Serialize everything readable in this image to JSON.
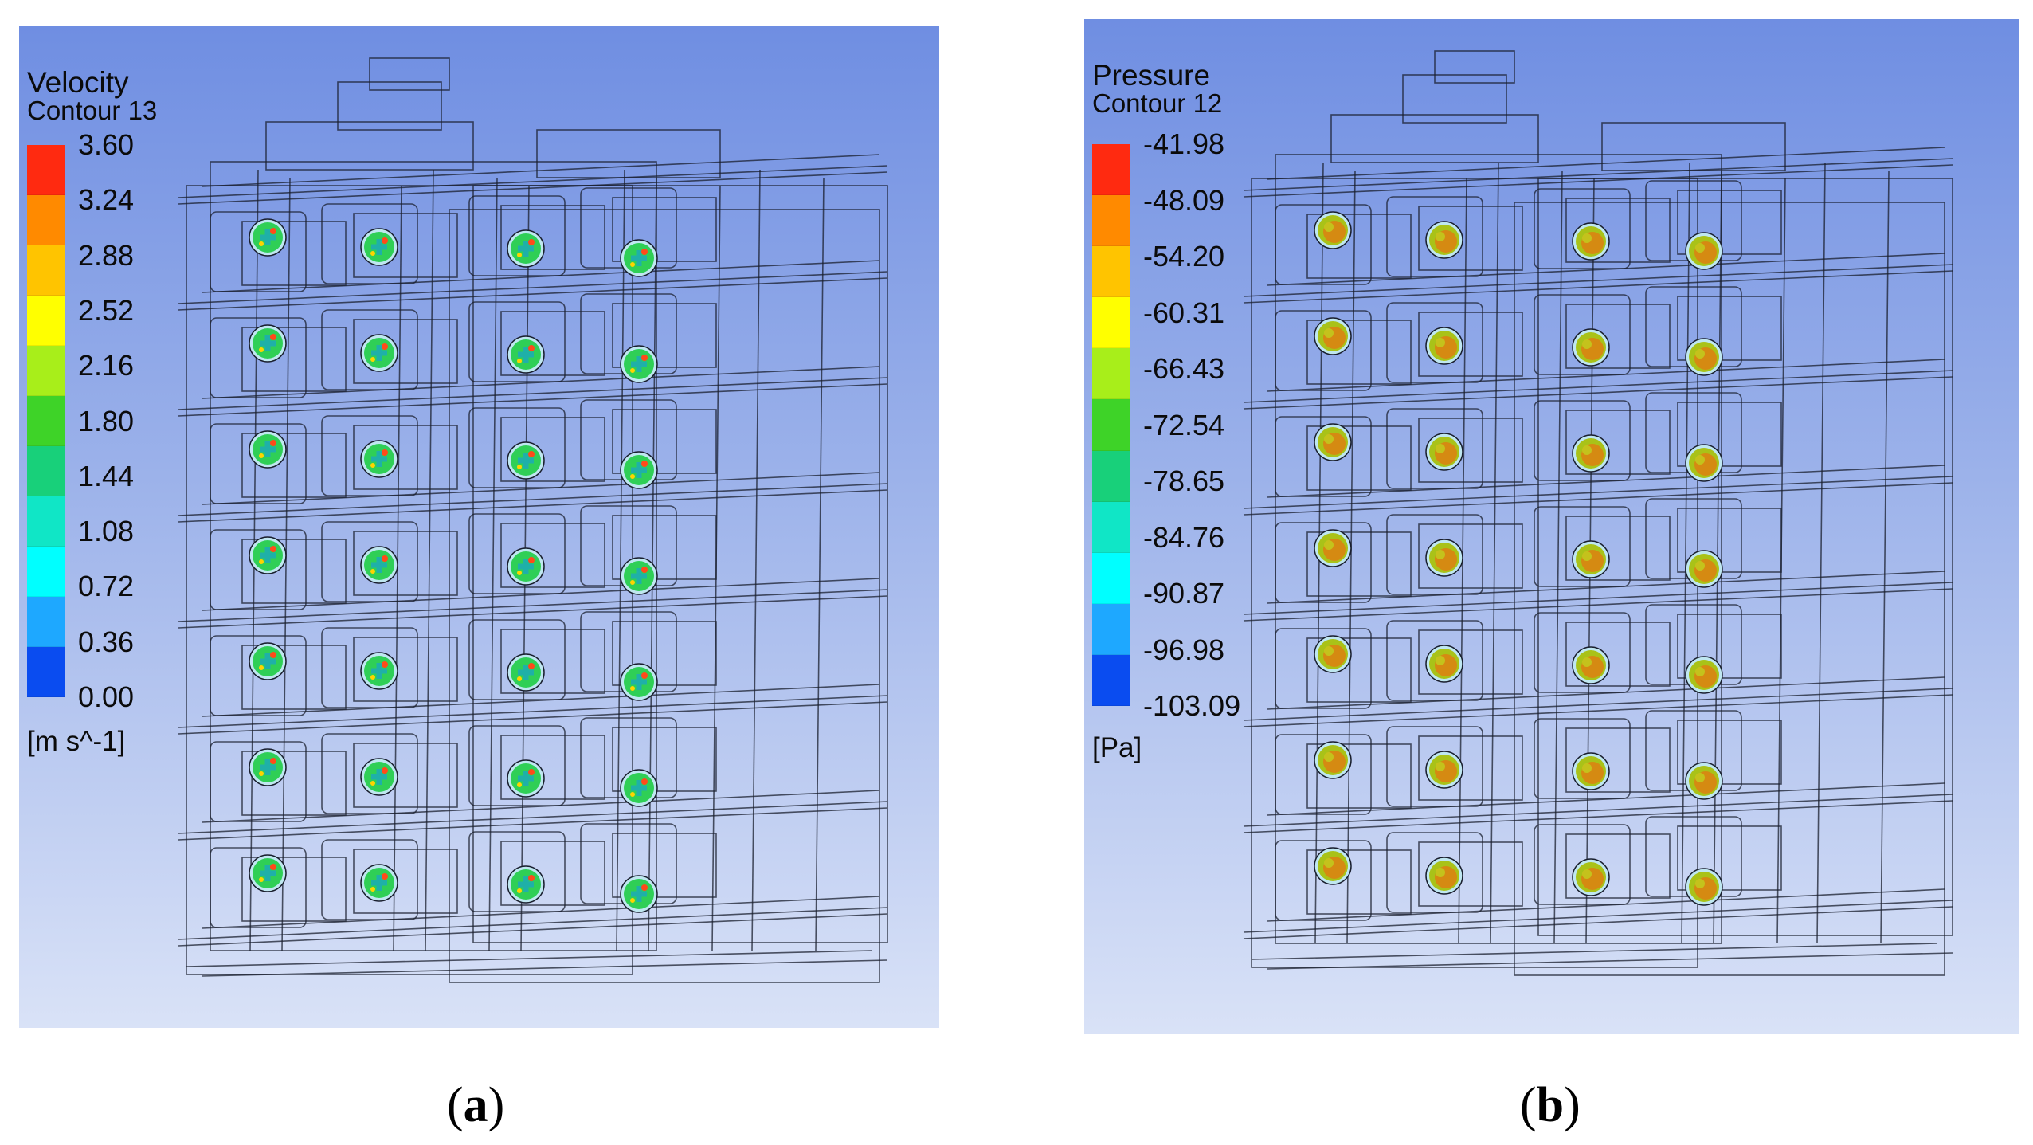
{
  "panels": [
    {
      "id": "a",
      "caption_open": "(",
      "caption_letter": "a",
      "caption_close": ")",
      "legend": {
        "title": "Velocity",
        "subtitle": "Contour 13",
        "ticks": [
          "3.60",
          "3.24",
          "2.88",
          "2.52",
          "2.16",
          "1.80",
          "1.44",
          "1.08",
          "0.72",
          "0.36",
          "0.00"
        ],
        "unit": "[m s^-1]"
      },
      "marker_style": "velocity"
    },
    {
      "id": "b",
      "caption_open": "(",
      "caption_letter": "b",
      "caption_close": ")",
      "legend": {
        "title": "Pressure",
        "subtitle": "Contour 12",
        "ticks": [
          "-41.98",
          "-48.09",
          "-54.20",
          "-60.31",
          "-66.43",
          "-72.54",
          "-78.65",
          "-84.76",
          "-90.87",
          "-96.98",
          "-103.09"
        ],
        "unit": "[Pa]"
      },
      "marker_style": "pressure"
    }
  ],
  "colormap": [
    "#ff2a10",
    "#ff8a00",
    "#ffc400",
    "#ffff00",
    "#a8ee1a",
    "#3ed328",
    "#18d07a",
    "#10e6c6",
    "#00ffff",
    "#1ea8ff",
    "#0a4cf0"
  ]
}
